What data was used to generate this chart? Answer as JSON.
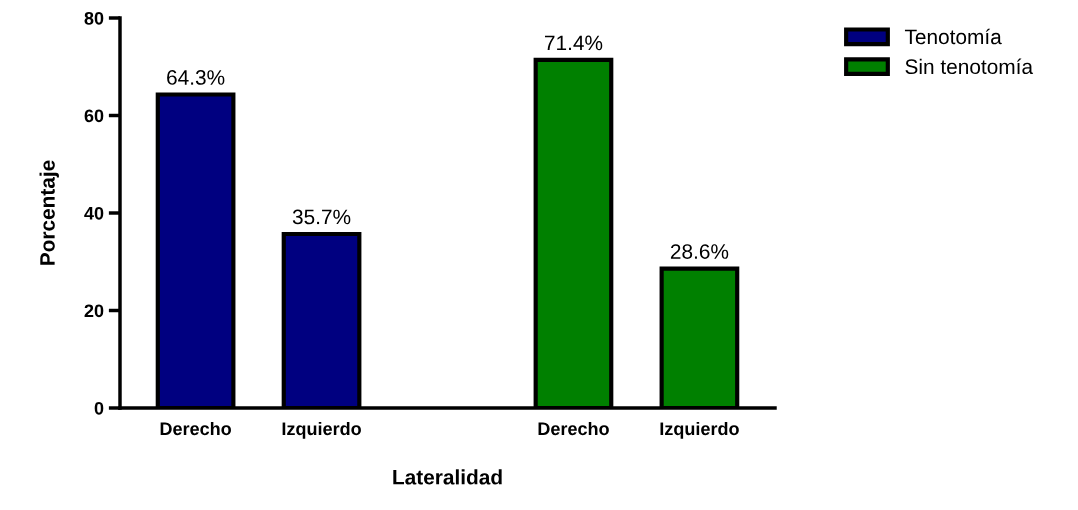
{
  "chart_data": {
    "type": "bar",
    "xlabel": "Lateralidad",
    "ylabel": "Porcentaje",
    "categories": [
      "Derecho",
      "Izquierdo",
      null,
      "Derecho",
      "Izquierdo"
    ],
    "series": [
      {
        "name": "Tenotomía",
        "color": "#000080",
        "values": [
          64.3,
          35.7,
          null,
          null,
          null
        ],
        "value_labels": [
          "64.3%",
          "35.7%",
          null,
          null,
          null
        ]
      },
      {
        "name": "Sin tenotomía",
        "color": "#008000",
        "values": [
          null,
          null,
          null,
          71.4,
          28.6
        ],
        "value_labels": [
          null,
          null,
          null,
          "71.4%",
          "28.6%"
        ]
      }
    ],
    "ylim": [
      0,
      80
    ],
    "yticks": [
      0,
      20,
      40,
      60,
      80
    ],
    "grid": false,
    "legend": "top right"
  }
}
